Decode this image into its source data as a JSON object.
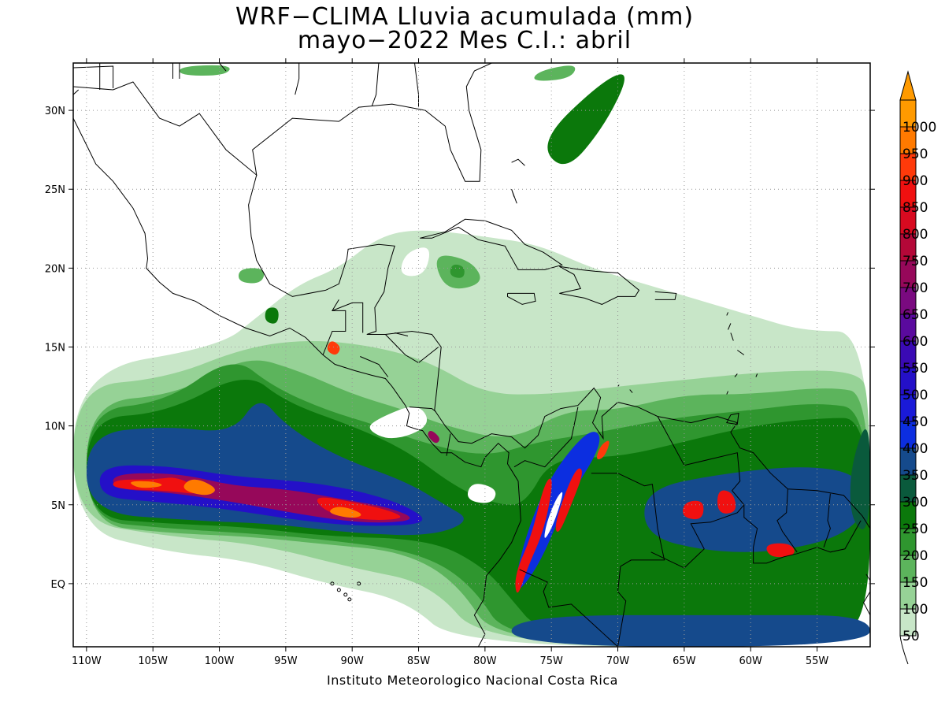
{
  "title": {
    "line1": "WRF−CLIMA Lluvia acumulada (mm)",
    "line2": "mayo−2022 Mes C.I.: abril"
  },
  "credit": "Instituto Meteorologico Nacional Costa Rica",
  "map": {
    "lon_range": [
      -111,
      -51
    ],
    "lat_range": [
      -4,
      33
    ],
    "lon_ticks": [
      "110W",
      "105W",
      "100W",
      "95W",
      "90W",
      "85W",
      "80W",
      "75W",
      "70W",
      "65W",
      "60W",
      "55W"
    ],
    "lat_ticks": [
      "30N",
      "25N",
      "20N",
      "15N",
      "10N",
      "5N",
      "EQ"
    ],
    "grid": true,
    "coastlines": true
  },
  "colorbar": {
    "levels": [
      "50",
      "100",
      "150",
      "200",
      "250",
      "300",
      "350",
      "400",
      "450",
      "500",
      "550",
      "600",
      "650",
      "700",
      "750",
      "800",
      "850",
      "900",
      "950",
      "1000"
    ],
    "colors": [
      "#c8e6c8",
      "#96d296",
      "#5cb45c",
      "#2f962f",
      "#0b780b",
      "#0a5a3c",
      "#154a8c",
      "#0c2ee0",
      "#1a1ad8",
      "#2410c8",
      "#3a0ab4",
      "#5a0a9e",
      "#7a0a80",
      "#96085a",
      "#b40838",
      "#d80a20",
      "#f01010",
      "#ff3a0a",
      "#ff7a00",
      "#ff9a00"
    ],
    "max_arrow": true
  },
  "precip_regions": [
    {
      "level": 50,
      "shape": "polygon",
      "pts": [
        [
          -111,
          13.5
        ],
        [
          -100,
          15
        ],
        [
          -97,
          17
        ],
        [
          -94,
          19
        ],
        [
          -91,
          20
        ],
        [
          -88,
          22
        ],
        [
          -85,
          22.5
        ],
        [
          -80,
          22
        ],
        [
          -76,
          21.5
        ],
        [
          -72,
          20
        ],
        [
          -68,
          19
        ],
        [
          -64,
          18
        ],
        [
          -60,
          17
        ],
        [
          -56,
          16
        ],
        [
          -51,
          16
        ],
        [
          -51,
          -4
        ],
        [
          -82,
          -4
        ],
        [
          -86,
          -1
        ],
        [
          -92,
          0
        ],
        [
          -98,
          1.5
        ],
        [
          -104,
          2
        ],
        [
          -111,
          3.5
        ]
      ]
    },
    {
      "level": 100,
      "shape": "polygon",
      "pts": [
        [
          -111,
          12.5
        ],
        [
          -104,
          13
        ],
        [
          -98,
          15
        ],
        [
          -93,
          15.5
        ],
        [
          -88,
          15
        ],
        [
          -84,
          14
        ],
        [
          -80,
          12
        ],
        [
          -75,
          12
        ],
        [
          -70,
          12.5
        ],
        [
          -64,
          13
        ],
        [
          -58,
          13.5
        ],
        [
          -52,
          13.5
        ],
        [
          -51,
          12
        ],
        [
          -51,
          -4
        ],
        [
          -80,
          -4
        ],
        [
          -84,
          0
        ],
        [
          -90,
          1
        ],
        [
          -97,
          2.5
        ],
        [
          -104,
          3
        ],
        [
          -111,
          4
        ]
      ]
    },
    {
      "level": 150,
      "shape": "polygon",
      "pts": [
        [
          -110,
          11.5
        ],
        [
          -103,
          12
        ],
        [
          -98,
          14.5
        ],
        [
          -94,
          13.5
        ],
        [
          -90,
          12
        ],
        [
          -86,
          11
        ],
        [
          -83,
          10
        ],
        [
          -78,
          9
        ],
        [
          -74,
          11
        ],
        [
          -70,
          11
        ],
        [
          -65,
          12
        ],
        [
          -60,
          12
        ],
        [
          -54,
          12.5
        ],
        [
          -51,
          12
        ],
        [
          -51,
          -4
        ],
        [
          -79,
          -4
        ],
        [
          -82,
          0
        ],
        [
          -86,
          2
        ],
        [
          -92,
          2.5
        ],
        [
          -98,
          3
        ],
        [
          -104,
          3.2
        ],
        [
          -110,
          3.8
        ]
      ]
    },
    {
      "level": 200,
      "shape": "polygon",
      "pts": [
        [
          -110,
          11
        ],
        [
          -104,
          11.5
        ],
        [
          -99,
          14.5
        ],
        [
          -96,
          12.5
        ],
        [
          -92,
          11
        ],
        [
          -88,
          10
        ],
        [
          -85,
          9
        ],
        [
          -80,
          8
        ],
        [
          -76,
          9
        ],
        [
          -72,
          9.5
        ],
        [
          -66,
          10.5
        ],
        [
          -60,
          11
        ],
        [
          -55,
          11.5
        ],
        [
          -51,
          11
        ],
        [
          -51,
          -4
        ],
        [
          -78,
          -4
        ],
        [
          -81,
          0
        ],
        [
          -85,
          2
        ],
        [
          -92,
          2.8
        ],
        [
          -98,
          3.2
        ],
        [
          -104,
          3.5
        ],
        [
          -110,
          4
        ]
      ]
    },
    {
      "level": 250,
      "shape": "polygon",
      "pts": [
        [
          -110,
          10.5
        ],
        [
          -104,
          10.8
        ],
        [
          -98,
          13.5
        ],
        [
          -95,
          11.5
        ],
        [
          -90,
          10
        ],
        [
          -86,
          8.5
        ],
        [
          -82,
          6
        ],
        [
          -79,
          5
        ],
        [
          -77,
          5
        ],
        [
          -75,
          8
        ],
        [
          -70,
          8
        ],
        [
          -65,
          9
        ],
        [
          -60,
          10
        ],
        [
          -55,
          10.5
        ],
        [
          -51,
          10.5
        ],
        [
          -51,
          -3
        ],
        [
          -55,
          -3
        ],
        [
          -60,
          -3
        ],
        [
          -65,
          -3
        ],
        [
          -70,
          -3
        ],
        [
          -76,
          -3
        ],
        [
          -78,
          -1
        ],
        [
          -80,
          1
        ],
        [
          -84,
          2.8
        ],
        [
          -92,
          3
        ],
        [
          -98,
          3.6
        ],
        [
          -104,
          3.8
        ],
        [
          -110,
          4.2
        ]
      ]
    },
    {
      "level": 350,
      "shape": "polygon",
      "pts": [
        [
          -110,
          9.5
        ],
        [
          -104,
          10
        ],
        [
          -99,
          9.5
        ],
        [
          -97,
          12
        ],
        [
          -95,
          10
        ],
        [
          -91,
          8
        ],
        [
          -86,
          6.5
        ],
        [
          -83,
          5
        ],
        [
          -81,
          4
        ],
        [
          -84,
          3
        ],
        [
          -90,
          3.2
        ],
        [
          -96,
          3.8
        ],
        [
          -102,
          4
        ],
        [
          -110,
          4.5
        ]
      ]
    },
    {
      "level": 350,
      "shape": "polygon",
      "pts": [
        [
          -68,
          6
        ],
        [
          -62,
          7
        ],
        [
          -56,
          7.5
        ],
        [
          -52,
          7
        ],
        [
          -51,
          5
        ],
        [
          -53,
          3
        ],
        [
          -58,
          2
        ],
        [
          -63,
          2
        ],
        [
          -68,
          3
        ]
      ]
    },
    {
      "level": 350,
      "shape": "polygon",
      "pts": [
        [
          -78,
          -2
        ],
        [
          -60,
          -2
        ],
        [
          -51,
          -2
        ],
        [
          -51,
          -4
        ],
        [
          -78,
          -4
        ]
      ]
    },
    {
      "level": 400,
      "shape": "polygon",
      "pts": [
        [
          -77,
          3
        ],
        [
          -75,
          7
        ],
        [
          -72,
          10
        ],
        [
          -71,
          9
        ],
        [
          -74,
          5
        ],
        [
          -76,
          1
        ],
        [
          -78,
          -1
        ]
      ]
    },
    {
      "level": 500,
      "shape": "polygon",
      "pts": [
        [
          -109,
          7.5
        ],
        [
          -104,
          7.5
        ],
        [
          -99,
          6.8
        ],
        [
          -94,
          6.5
        ],
        [
          -90,
          6
        ],
        [
          -86,
          5
        ],
        [
          -84,
          3.8
        ],
        [
          -89,
          3.6
        ],
        [
          -94,
          4
        ],
        [
          -100,
          4.8
        ],
        [
          -105,
          5.2
        ],
        [
          -109,
          5.5
        ]
      ]
    },
    {
      "level": 700,
      "shape": "polygon",
      "pts": [
        [
          -108,
          7
        ],
        [
          -103,
          7
        ],
        [
          -99,
          6.2
        ],
        [
          -95,
          6
        ],
        [
          -91,
          5.4
        ],
        [
          -87,
          4.8
        ],
        [
          -85,
          4
        ],
        [
          -89,
          3.8
        ],
        [
          -94,
          4.4
        ],
        [
          -99,
          5.2
        ],
        [
          -104,
          5.8
        ],
        [
          -108,
          6
        ]
      ]
    },
    {
      "level": 850,
      "shape": "polygon",
      "pts": [
        [
          -108,
          6.6
        ],
        [
          -105,
          6.6
        ],
        [
          -103,
          6.8
        ],
        [
          -101,
          5.6
        ],
        [
          -104,
          5.9
        ],
        [
          -108,
          6
        ]
      ]
    },
    {
      "level": 850,
      "shape": "polygon",
      "pts": [
        [
          -93,
          5.6
        ],
        [
          -90,
          5.2
        ],
        [
          -87,
          4.6
        ],
        [
          -86,
          4.1
        ],
        [
          -89,
          4
        ],
        [
          -92,
          4.5
        ]
      ]
    },
    {
      "level": 950,
      "shape": "polygon",
      "pts": [
        [
          -107,
          6.5
        ],
        [
          -105,
          6.5
        ],
        [
          -104,
          6.2
        ],
        [
          -106,
          6
        ]
      ]
    },
    {
      "level": 950,
      "shape": "polygon",
      "pts": [
        [
          -102,
          6.8
        ],
        [
          -100,
          6
        ],
        [
          -101,
          5.5
        ],
        [
          -103,
          6
        ]
      ]
    },
    {
      "level": 950,
      "shape": "polygon",
      "pts": [
        [
          -91,
          5
        ],
        [
          -89,
          4.4
        ],
        [
          -90,
          4.1
        ],
        [
          -92,
          4.5
        ]
      ]
    },
    {
      "level": 850,
      "shape": "polygon",
      "pts": [
        [
          -75.5,
          6.5
        ],
        [
          -74.8,
          6.8
        ],
        [
          -75.5,
          3.5
        ],
        [
          -76.8,
          1
        ],
        [
          -77.6,
          -1
        ],
        [
          -77.8,
          0.5
        ],
        [
          -76.5,
          3
        ]
      ]
    },
    {
      "level": 850,
      "shape": "polygon",
      "pts": [
        [
          -73.2,
          7.4
        ],
        [
          -72.5,
          7.2
        ],
        [
          -73.5,
          5
        ],
        [
          -74.5,
          3
        ],
        [
          -74.8,
          3.8
        ]
      ]
    },
    {
      "level": 900,
      "shape": "polygon",
      "pts": [
        [
          -71.3,
          8.8
        ],
        [
          -70.5,
          9.2
        ],
        [
          -71,
          8
        ],
        [
          -71.7,
          7.8
        ]
      ]
    },
    {
      "level": 850,
      "shape": "polygon",
      "pts": [
        [
          -62.5,
          6
        ],
        [
          -61.3,
          5.8
        ],
        [
          -61,
          4.5
        ],
        [
          -62.5,
          4.4
        ]
      ]
    },
    {
      "level": 850,
      "shape": "polygon",
      "pts": [
        [
          -59,
          2.5
        ],
        [
          -57,
          2.6
        ],
        [
          -56.5,
          1.8
        ],
        [
          -58.5,
          1.6
        ]
      ]
    },
    {
      "level": 850,
      "shape": "polygon",
      "pts": [
        [
          -65,
          5.2
        ],
        [
          -63.5,
          5.3
        ],
        [
          -63.6,
          4
        ],
        [
          -65.2,
          4.2
        ]
      ]
    },
    {
      "level": 900,
      "shape": "polygon",
      "pts": [
        [
          -91.6,
          15.5
        ],
        [
          -90.8,
          15
        ],
        [
          -91.2,
          14.4
        ],
        [
          -92,
          14.8
        ]
      ]
    },
    {
      "level": 700,
      "shape": "polygon",
      "pts": [
        [
          -84.1,
          9.8
        ],
        [
          -83.3,
          9.2
        ],
        [
          -83.7,
          8.8
        ],
        [
          -84.4,
          9.4
        ]
      ]
    },
    {
      "level": 300,
      "shape": "polygon",
      "pts": [
        [
          -52.5,
          7.5
        ],
        [
          -51,
          11
        ],
        [
          -51,
          3
        ],
        [
          -52.5,
          4
        ]
      ]
    },
    {
      "level": 250,
      "shape": "polygon",
      "pts": [
        [
          -76,
          28
        ],
        [
          -71,
          32
        ],
        [
          -69,
          32.5
        ],
        [
          -71,
          29
        ],
        [
          -74,
          26
        ]
      ]
    },
    {
      "level": 150,
      "shape": "polygon",
      "pts": [
        [
          -84,
          21
        ],
        [
          -81,
          20.5
        ],
        [
          -80,
          19
        ],
        [
          -83,
          18.5
        ]
      ]
    },
    {
      "level": 200,
      "shape": "polygon",
      "pts": [
        [
          -82.5,
          20.3
        ],
        [
          -81.5,
          20.1
        ],
        [
          -81.6,
          19.3
        ],
        [
          -82.7,
          19.5
        ]
      ]
    },
    {
      "level": 150,
      "shape": "polygon",
      "pts": [
        [
          -98.5,
          20
        ],
        [
          -96.5,
          20
        ],
        [
          -96.8,
          19
        ],
        [
          -98.6,
          19.1
        ]
      ]
    },
    {
      "level": 250,
      "shape": "polygon",
      "pts": [
        [
          -96.5,
          17.5
        ],
        [
          -95.5,
          17.5
        ],
        [
          -95.6,
          16.4
        ],
        [
          -96.6,
          16.6
        ]
      ]
    },
    {
      "level": 150,
      "shape": "polygon",
      "pts": [
        [
          -76,
          32.5
        ],
        [
          -73,
          33
        ],
        [
          -73.5,
          32
        ],
        [
          -76.5,
          31.8
        ]
      ]
    },
    {
      "level": 150,
      "shape": "polygon",
      "pts": [
        [
          -103,
          32.8
        ],
        [
          -99,
          32.9
        ],
        [
          -99.5,
          32.2
        ],
        [
          -103,
          32.2
        ]
      ]
    }
  ],
  "white_holes": [
    {
      "shape": "polygon",
      "pts": [
        [
          -88,
          10.5
        ],
        [
          -85,
          11.5
        ],
        [
          -84,
          10
        ],
        [
          -87,
          9
        ],
        [
          -89,
          9.8
        ]
      ]
    },
    {
      "shape": "polygon",
      "pts": [
        [
          -81,
          6.5
        ],
        [
          -79,
          6
        ],
        [
          -79.5,
          5
        ],
        [
          -81.5,
          5.3
        ]
      ]
    },
    {
      "shape": "polygon",
      "pts": [
        [
          -74.6,
          5.5
        ],
        [
          -74,
          6
        ],
        [
          -74.8,
          3.8
        ],
        [
          -75.6,
          2.6
        ],
        [
          -75.4,
          3.8
        ]
      ]
    },
    {
      "shape": "polygon",
      "pts": [
        [
          -86,
          21
        ],
        [
          -84,
          21.5
        ],
        [
          -84.5,
          19.5
        ],
        [
          -86.5,
          19.5
        ]
      ]
    }
  ]
}
